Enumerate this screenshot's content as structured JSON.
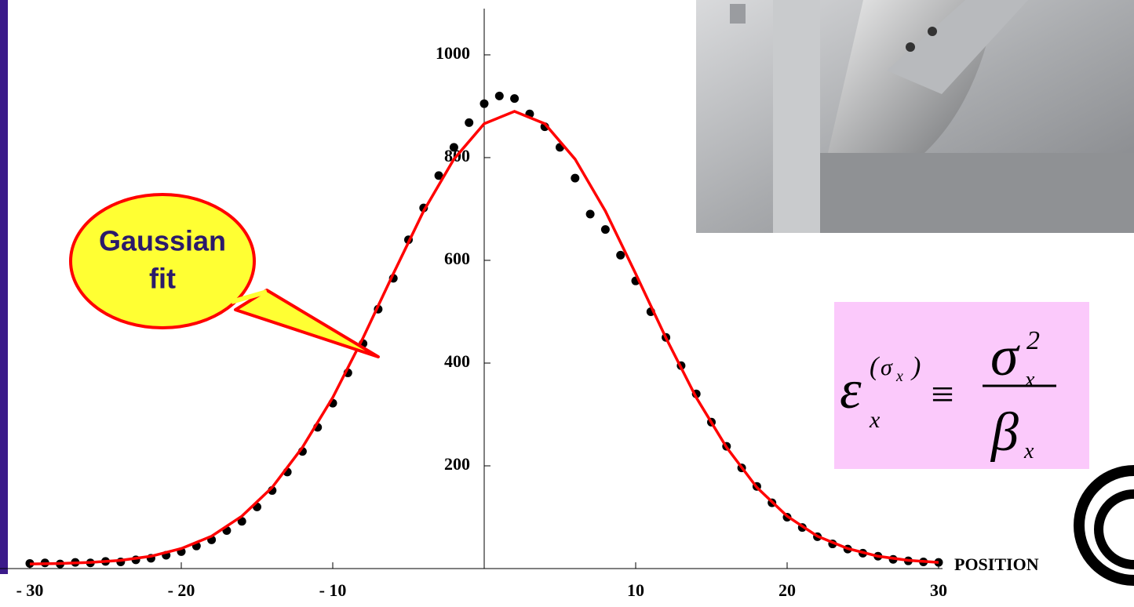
{
  "chart_data": {
    "type": "scatter",
    "series": [
      {
        "color": "#000000",
        "kind": "points",
        "x": [
          -30,
          -29,
          -28,
          -27,
          -26,
          -25,
          -24,
          -23,
          -22,
          -21,
          -20,
          -19,
          -18,
          -17,
          -16,
          -15,
          -14,
          -13,
          -12,
          -11,
          -10,
          -9,
          -8,
          -7,
          -6,
          -5,
          -4,
          -3,
          -2,
          -1,
          0,
          1,
          2,
          3,
          4,
          5,
          6,
          7,
          8,
          9,
          10,
          11,
          12,
          13,
          14,
          15,
          16,
          17,
          18,
          19,
          20,
          21,
          22,
          23,
          24,
          25,
          26,
          27,
          28,
          29,
          30
        ],
        "values": [
          10,
          11,
          9,
          12,
          11,
          14,
          13,
          17,
          20,
          26,
          33,
          44,
          56,
          74,
          92,
          120,
          152,
          188,
          228,
          275,
          322,
          381,
          438,
          505,
          565,
          640,
          702,
          765,
          820,
          868,
          905,
          920,
          915,
          885,
          860,
          820,
          760,
          690,
          660,
          610,
          560,
          500,
          450,
          395,
          340,
          285,
          238,
          196,
          160,
          128,
          100,
          80,
          62,
          48,
          38,
          30,
          24,
          18,
          15,
          13,
          12
        ]
      },
      {
        "color": "#ff0000",
        "kind": "line",
        "x": [
          -30,
          -28,
          -26,
          -24,
          -22,
          -20,
          -18,
          -16,
          -14,
          -12,
          -10,
          -8,
          -6,
          -4,
          -2,
          0,
          2,
          4,
          6,
          8,
          10,
          12,
          14,
          16,
          18,
          20,
          22,
          24,
          26,
          28,
          30
        ],
        "values": [
          9,
          10,
          12,
          16,
          24,
          39,
          63,
          102,
          158,
          236,
          333,
          449,
          574,
          696,
          797,
          866,
          890,
          866,
          797,
          696,
          574,
          449,
          333,
          236,
          158,
          102,
          63,
          39,
          24,
          16,
          12
        ]
      }
    ],
    "xlim": [
      -30,
      30
    ],
    "ylim": [
      0,
      1090
    ],
    "xticks": [
      {
        "value": -30,
        "label": "- 30"
      },
      {
        "value": -20,
        "label": "- 20"
      },
      {
        "value": -10,
        "label": "- 10"
      },
      10,
      20,
      30
    ],
    "yticks": [
      200,
      400,
      600,
      800,
      1000
    ],
    "xlabel": "POSITION",
    "annotation": [
      "Gaussian",
      "fit"
    ],
    "formula": {
      "eps": "ε",
      "eps_sub": "x",
      "open": "(",
      "sup": "σ",
      "sup_sub": "x",
      "close": ")",
      "equiv": "≡",
      "num": "σ",
      "num_sub": "x",
      "num_sup": "2",
      "den": "β",
      "den_sub": "x"
    }
  }
}
